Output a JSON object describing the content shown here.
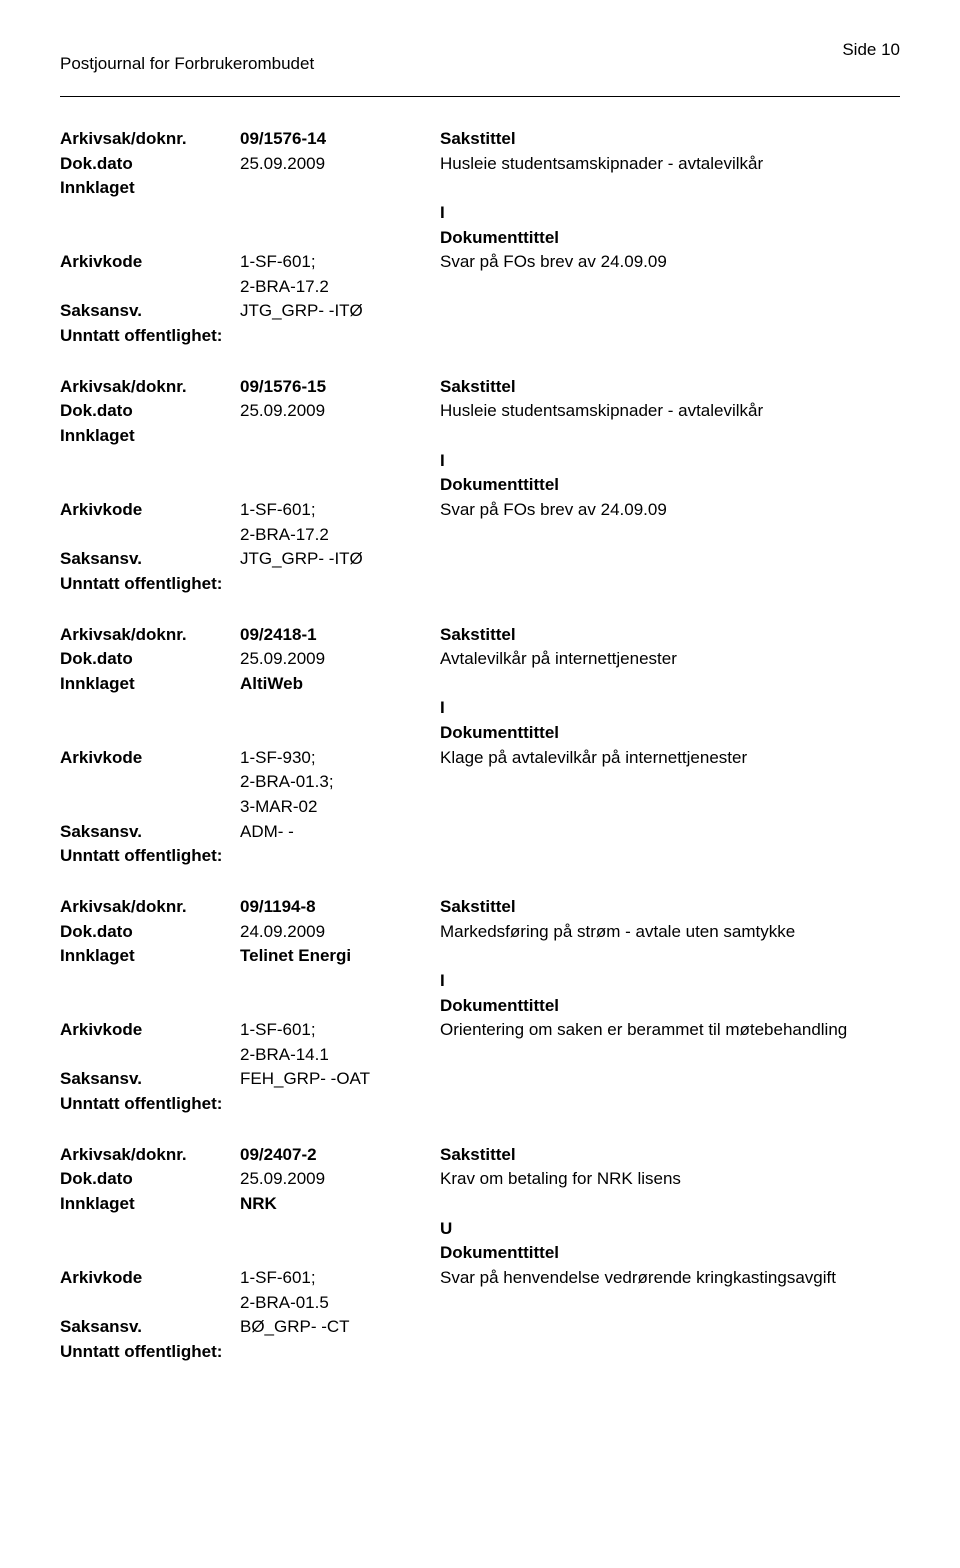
{
  "page_header_left": "Postjournal for Forbrukerombudet",
  "page_header_right": "Side 10",
  "labels": {
    "arkivsak": "Arkivsak/doknr.",
    "dokdato": "Dok.dato",
    "innklaget": "Innklaget",
    "arkivkode": "Arkivkode",
    "saksansv": "Saksansv.",
    "unntatt": "Unntatt offentlighet:",
    "sakstittel": "Sakstittel",
    "dokumenttittel": "Dokumenttittel"
  },
  "entries": [
    {
      "doknr": "09/1576-14",
      "dokdato": "25.09.2009",
      "sakstittel_text": "Husleie studentsamskipnader  - avtalevilkår",
      "innklaget": "",
      "type_letter": "I",
      "arkivkode_lines": [
        "1-SF-601;",
        "2-BRA-17.2"
      ],
      "dokumenttittel_text": "Svar på FOs brev av 24.09.09",
      "saksansv": "JTG_GRP- -ITØ",
      "unntatt": ""
    },
    {
      "doknr": "09/1576-15",
      "dokdato": "25.09.2009",
      "sakstittel_text": "Husleie studentsamskipnader  - avtalevilkår",
      "innklaget": "",
      "type_letter": "I",
      "arkivkode_lines": [
        "1-SF-601;",
        "2-BRA-17.2"
      ],
      "dokumenttittel_text": "Svar på FOs brev av 24.09.09",
      "saksansv": "JTG_GRP- -ITØ",
      "unntatt": ""
    },
    {
      "doknr": "09/2418-1",
      "dokdato": "25.09.2009",
      "sakstittel_text": "Avtalevilkår på internettjenester",
      "innklaget": "AltiWeb",
      "type_letter": "I",
      "arkivkode_lines": [
        "1-SF-930;",
        "2-BRA-01.3;",
        "3-MAR-02"
      ],
      "dokumenttittel_text": "Klage på avtalevilkår på internettjenester",
      "saksansv": "ADM- -",
      "unntatt": ""
    },
    {
      "doknr": "09/1194-8",
      "dokdato": "24.09.2009",
      "sakstittel_text": "Markedsføring på strøm - avtale uten samtykke",
      "innklaget": "Telinet Energi",
      "type_letter": "I",
      "arkivkode_lines": [
        "1-SF-601;",
        "2-BRA-14.1"
      ],
      "dokumenttittel_text": "Orientering om saken er berammet til møtebehandling",
      "saksansv": "FEH_GRP- -OAT",
      "unntatt": ""
    },
    {
      "doknr": "09/2407-2",
      "dokdato": "25.09.2009",
      "sakstittel_text": "Krav om betaling for NRK lisens",
      "innklaget": "NRK",
      "type_letter": "U",
      "arkivkode_lines": [
        "1-SF-601;",
        "2-BRA-01.5"
      ],
      "dokumenttittel_text": "Svar på henvendelse vedrørende kringkastingsavgift",
      "saksansv": "BØ_GRP- -CT",
      "unntatt": ""
    }
  ]
}
